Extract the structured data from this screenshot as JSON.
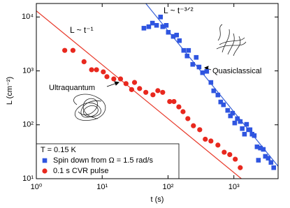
{
  "chart_data": {
    "type": "scatter",
    "x_label": "t (s)",
    "y_label": "L (cm⁻²)",
    "xscale": "log",
    "yscale": "log",
    "xlim": [
      1,
      4700
    ],
    "ylim": [
      10,
      17800
    ],
    "xticks": [
      {
        "value": 1,
        "label": "10⁰"
      },
      {
        "value": 10,
        "label": "10¹"
      },
      {
        "value": 100,
        "label": "10²"
      },
      {
        "value": 1000,
        "label": "10³"
      }
    ],
    "yticks": [
      {
        "value": 10,
        "label": "10¹"
      },
      {
        "value": 100,
        "label": "10²"
      },
      {
        "value": 1000,
        "label": "10³"
      },
      {
        "value": 10000,
        "label": "10⁴"
      }
    ],
    "legend_title": "T = 0.15 K",
    "legend_position": "lower left",
    "annotations": [
      "L ~ t⁻¹",
      "L ~ t⁻³ᐟ²",
      "Ultraquantum",
      "Quasiclassical"
    ],
    "series": [
      {
        "name": "Spin down from Ω = 1.5 rad/s",
        "color": "#2f55e0",
        "marker": "square",
        "x": [
          43,
          51,
          58,
          67,
          77,
          83,
          94,
          101,
          120,
          135,
          149,
          173,
          195,
          205,
          237,
          268,
          296,
          334,
          387,
          448,
          494,
          572,
          631,
          695,
          805,
          887,
          955,
          1030,
          1130,
          1250,
          1340,
          1450,
          1560,
          1670,
          1760,
          1890,
          2040,
          2250,
          2360,
          2530,
          2800,
          3010,
          3320,
          3660,
          4030
        ],
        "values": [
          6200,
          6600,
          7700,
          7000,
          10000,
          6600,
          7000,
          5200,
          4360,
          4620,
          3640,
          2400,
          1890,
          2400,
          1320,
          1780,
          1180,
          925,
          980,
          610,
          427,
          357,
          265,
          235,
          185,
          146,
          164,
          108,
          130,
          115,
          85,
          67,
          102,
          81,
          81,
          67,
          63,
          39,
          22,
          37,
          35,
          26,
          24,
          20,
          16
        ]
      },
      {
        "name": "0.1 s CVR pulse",
        "color": "#e8281e",
        "marker": "circle",
        "x": [
          2.7,
          3.6,
          5.3,
          6.9,
          8.2,
          10.4,
          11.8,
          15,
          19,
          23,
          28,
          31,
          37,
          46,
          59,
          70,
          83,
          106,
          123,
          146,
          169,
          200,
          243,
          303,
          368,
          448,
          572,
          713,
          866,
          1050,
          1250
        ],
        "values": [
          2400,
          2400,
          1480,
          1050,
          1050,
          960,
          780,
          710,
          710,
          580,
          450,
          610,
          470,
          400,
          360,
          430,
          400,
          270,
          270,
          215,
          175,
          130,
          96,
          81,
          54,
          50,
          42,
          31,
          28,
          23,
          16
        ]
      }
    ],
    "lines": [
      {
        "color": "#e8392a",
        "x": [
          1,
          1300
        ],
        "values": [
          13000,
          10
        ]
      },
      {
        "color": "#3a62d6",
        "x": [
          46,
          4700
        ],
        "values": [
          17800,
          17
        ]
      }
    ]
  }
}
